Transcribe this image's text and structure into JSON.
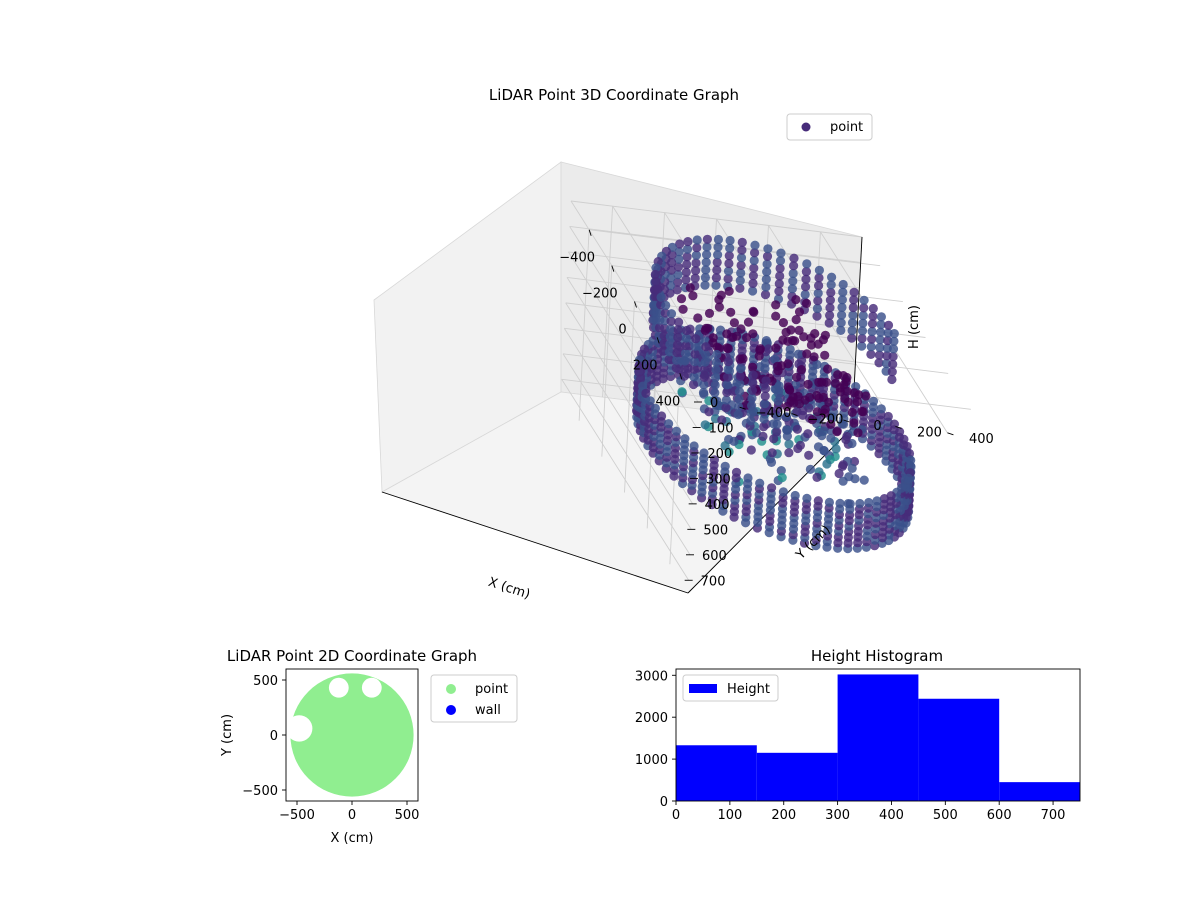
{
  "chart_data": [
    {
      "type": "scatter",
      "projection": "3d",
      "title": "LiDAR Point 3D Coordinate Graph",
      "xlabel": "X (cm)",
      "ylabel": "Y (cm)",
      "zlabel": "H (cm)",
      "xlim": [
        -560,
        560
      ],
      "ylim": [
        -560,
        560
      ],
      "zlim": [
        750,
        0
      ],
      "z_axis_inverted": true,
      "x_ticks": [
        "−400",
        "−200",
        "0",
        "200",
        "400"
      ],
      "y_ticks": [
        "−400",
        "−200",
        "0",
        "200",
        "400"
      ],
      "z_ticks": [
        "0",
        "100",
        "200",
        "300",
        "400",
        "500",
        "600",
        "700"
      ],
      "colormap": "viridis",
      "series": [
        {
          "name": "point",
          "color": "#472c7a"
        }
      ],
      "legend": {
        "position": "upper right",
        "entries": [
          "point"
        ]
      },
      "grid": true,
      "points": {
        "wall_ring": {
          "radius": 480,
          "h_range": [
            380,
            560
          ],
          "step_deg": 5
        },
        "back_ring": {
          "radius": 440,
          "h_range": [
            0,
            180
          ],
          "step_deg": 6
        },
        "floor_cluster": {
          "x_range": [
            -300,
            300
          ],
          "y_range": [
            -250,
            250
          ],
          "h_range": [
            80,
            520
          ]
        }
      }
    },
    {
      "type": "scatter",
      "title": "LiDAR Point 2D Coordinate Graph",
      "xlabel": "X (cm)",
      "ylabel": "Y (cm)",
      "xlim": [
        -600,
        600
      ],
      "ylim": [
        -600,
        600
      ],
      "x_ticks": [
        "−500",
        "0",
        "500"
      ],
      "y_ticks": [
        "500",
        "0",
        "−500"
      ],
      "series": [
        {
          "name": "point",
          "color": "#90ee90",
          "shape": "filled disk",
          "radius": 560,
          "gaps": [
            [
              -480,
              60,
              120
            ],
            [
              -120,
              430,
              90
            ],
            [
              180,
              430,
              90
            ]
          ]
        },
        {
          "name": "wall",
          "color": "#0000ff",
          "count": 0
        }
      ],
      "legend": {
        "position": "outside right",
        "entries": [
          "point",
          "wall"
        ]
      }
    },
    {
      "type": "bar",
      "subtype": "histogram",
      "title": "Height Histogram",
      "xlim": [
        0,
        750
      ],
      "ylim": [
        0,
        3150
      ],
      "x_ticks": [
        "0",
        "100",
        "200",
        "300",
        "400",
        "500",
        "600",
        "700"
      ],
      "y_ticks": [
        "0",
        "1000",
        "2000",
        "3000"
      ],
      "bin_edges": [
        0,
        150,
        300,
        450,
        600,
        750
      ],
      "values": [
        1330,
        1150,
        3020,
        2440,
        450
      ],
      "series": [
        {
          "name": "Height",
          "color": "#0000ff"
        }
      ],
      "legend": {
        "position": "upper left",
        "entries": [
          "Height"
        ]
      }
    }
  ]
}
